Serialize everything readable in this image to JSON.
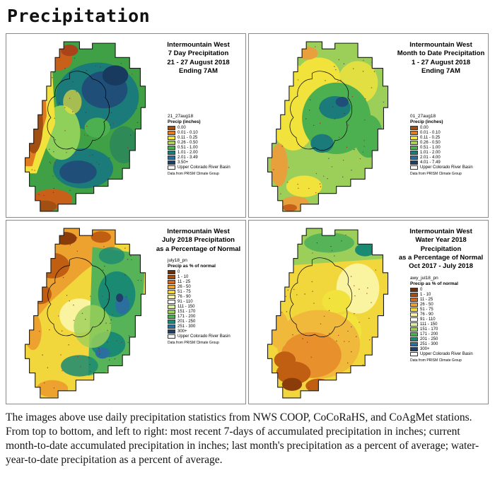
{
  "page_title": "Precipitation",
  "caption": "The images above use daily precipitation statistics from NWS COOP, CoCoRaHS, and CoAgMet stations. From top to bottom, and left to right: most recent 7-days of accumulated precipitation in inches; current month-to-date accumulated precipitation in inches; last month's precipitation as a percent of average; water-year-to-date precipitation as a percent of average.",
  "panels": [
    {
      "title_lines": [
        "Intermountain West",
        "7 Day Precipitation",
        "21 - 27 August 2018",
        "Ending 7AM"
      ],
      "layer_name": "21_27aug18",
      "legend_title": "Precip (inches)",
      "legend_entries": [
        {
          "label": "0.00",
          "color": "#a14f13"
        },
        {
          "label": "0.01 - 0.10",
          "color": "#e07b1f"
        },
        {
          "label": "0.11 - 0.25",
          "color": "#f2e23c"
        },
        {
          "label": "0.26 - 0.50",
          "color": "#a8d05a"
        },
        {
          "label": "0.51 - 1.00",
          "color": "#4caf50"
        },
        {
          "label": "1.01 - 2.00",
          "color": "#1b7a7a"
        },
        {
          "label": "2.01 - 3.49",
          "color": "#2b6f9e"
        },
        {
          "label": "3.50+",
          "color": "#1f3f66"
        }
      ],
      "basin_label": "Upper Colorado River Basin",
      "source_note": "Data from PRISM Climate Group"
    },
    {
      "title_lines": [
        "Intermountain West",
        "Month to Date Precipitation",
        "1 - 27 August 2018",
        "Ending 7AM"
      ],
      "layer_name": "01_27aug18",
      "legend_title": "Precip (inches)",
      "legend_entries": [
        {
          "label": "0.00",
          "color": "#a14f13"
        },
        {
          "label": "0.01 - 0.10",
          "color": "#e07b1f"
        },
        {
          "label": "0.11 - 0.25",
          "color": "#f2e23c"
        },
        {
          "label": "0.26 - 0.50",
          "color": "#a8d05a"
        },
        {
          "label": "0.51 - 1.00",
          "color": "#4caf50"
        },
        {
          "label": "1.01 - 2.00",
          "color": "#1b7a7a"
        },
        {
          "label": "2.01 - 4.00",
          "color": "#2b6f9e"
        },
        {
          "label": "4.01 - 7.49",
          "color": "#1f3f66"
        }
      ],
      "basin_label": "Upper Colorado River Basin",
      "source_note": "Data from PRISM Climate Group"
    },
    {
      "title_lines": [
        "Intermountain West",
        "July 2018 Precipitation",
        "as a Percentage of Normal"
      ],
      "layer_name": "july18_pn",
      "legend_title": "Precip as % of normal",
      "legend_entries": [
        {
          "label": "0",
          "color": "#6b2d0a"
        },
        {
          "label": "1 - 10",
          "color": "#a14f13"
        },
        {
          "label": "11 - 25",
          "color": "#d2691e"
        },
        {
          "label": "26 - 50",
          "color": "#eda12f"
        },
        {
          "label": "51 - 75",
          "color": "#f2d73c"
        },
        {
          "label": "76 - 90",
          "color": "#faf3a0"
        },
        {
          "label": "91 - 110",
          "color": "#ffffff"
        },
        {
          "label": "111 - 150",
          "color": "#d9efa8"
        },
        {
          "label": "151 - 170",
          "color": "#9ccf5a"
        },
        {
          "label": "171 - 200",
          "color": "#4caf50"
        },
        {
          "label": "201 - 250",
          "color": "#1b8a72"
        },
        {
          "label": "251 - 300",
          "color": "#2b6f9e"
        },
        {
          "label": "300+",
          "color": "#1f3f66"
        }
      ],
      "basin_label": "Upper Colorado River Basin",
      "source_note": "Data from PRISM Climate Group"
    },
    {
      "title_lines": [
        "Intermountain West",
        "Water Year 2018 Precipitation",
        "as a Percentage of Normal",
        "Oct 2017 - July 2018"
      ],
      "layer_name": "awy_jul18_pn",
      "legend_title": "Precip as % of normal",
      "legend_entries": [
        {
          "label": "0",
          "color": "#6b2d0a"
        },
        {
          "label": "1 - 10",
          "color": "#a14f13"
        },
        {
          "label": "11 - 25",
          "color": "#d2691e"
        },
        {
          "label": "26 - 50",
          "color": "#eda12f"
        },
        {
          "label": "51 - 75",
          "color": "#f2d73c"
        },
        {
          "label": "76 - 90",
          "color": "#faf3a0"
        },
        {
          "label": "91 - 110",
          "color": "#ffffff"
        },
        {
          "label": "111 - 150",
          "color": "#d9efa8"
        },
        {
          "label": "151 - 170",
          "color": "#9ccf5a"
        },
        {
          "label": "171 - 200",
          "color": "#4caf50"
        },
        {
          "label": "201 - 250",
          "color": "#1b8a72"
        },
        {
          "label": "251 - 300",
          "color": "#2b6f9e"
        },
        {
          "label": "300+",
          "color": "#1f3f66"
        }
      ],
      "basin_label": "Upper Colorado River Basin",
      "source_note": "Data from PRISM Climate Group"
    }
  ]
}
